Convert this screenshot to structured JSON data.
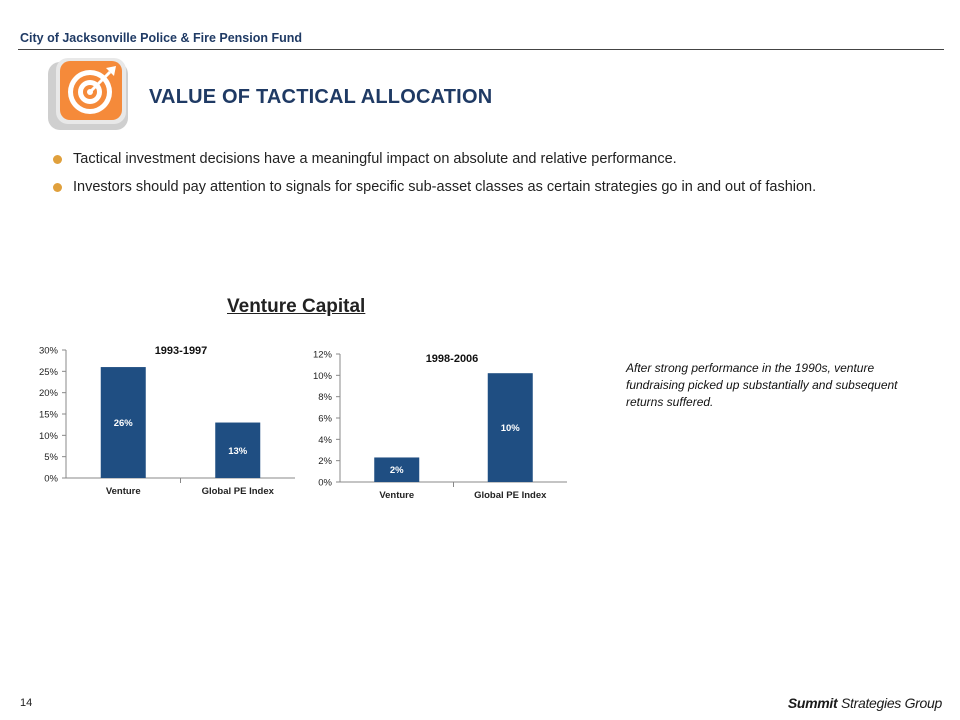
{
  "header": {
    "org": "City of Jacksonville Police & Fire Pension Fund"
  },
  "slide": {
    "title": "VALUE OF TACTICAL ALLOCATION",
    "bullets": [
      "Tactical investment decisions have a meaningful impact on absolute and relative performance.",
      "Investors should pay attention to signals for specific sub-asset classes as certain strategies go in and out of fashion."
    ],
    "section_title": "Venture Capital",
    "note": "After strong performance in the 1990s, venture fundraising picked up substantially and subsequent returns suffered.",
    "page_number": "14"
  },
  "footer": {
    "logo_bold": "Summit",
    "logo_rest": " Strategies Group"
  },
  "icon": {
    "name": "target-icon",
    "bg_color": "#f58a3a",
    "frame_color": "#d9d9d9"
  },
  "colors": {
    "bar": "#1f4e82",
    "accent": "#e0a03c",
    "title": "#1f3a64"
  },
  "chart_data": [
    {
      "type": "bar",
      "title": "1993-1997",
      "categories": [
        "Venture",
        "Global PE Index"
      ],
      "values": [
        26,
        13
      ],
      "value_labels": [
        "26%",
        "13%"
      ],
      "y_ticks": [
        "0%",
        "5%",
        "10%",
        "15%",
        "20%",
        "25%",
        "30%"
      ],
      "ylim": [
        0,
        30
      ],
      "grid": false
    },
    {
      "type": "bar",
      "title": "1998-2006",
      "categories": [
        "Venture",
        "Global PE Index"
      ],
      "values": [
        2.3,
        10.2
      ],
      "value_labels": [
        "2%",
        "10%"
      ],
      "y_ticks": [
        "0%",
        "2%",
        "4%",
        "6%",
        "8%",
        "10%",
        "12%"
      ],
      "ylim": [
        0,
        12
      ],
      "grid": false
    }
  ]
}
